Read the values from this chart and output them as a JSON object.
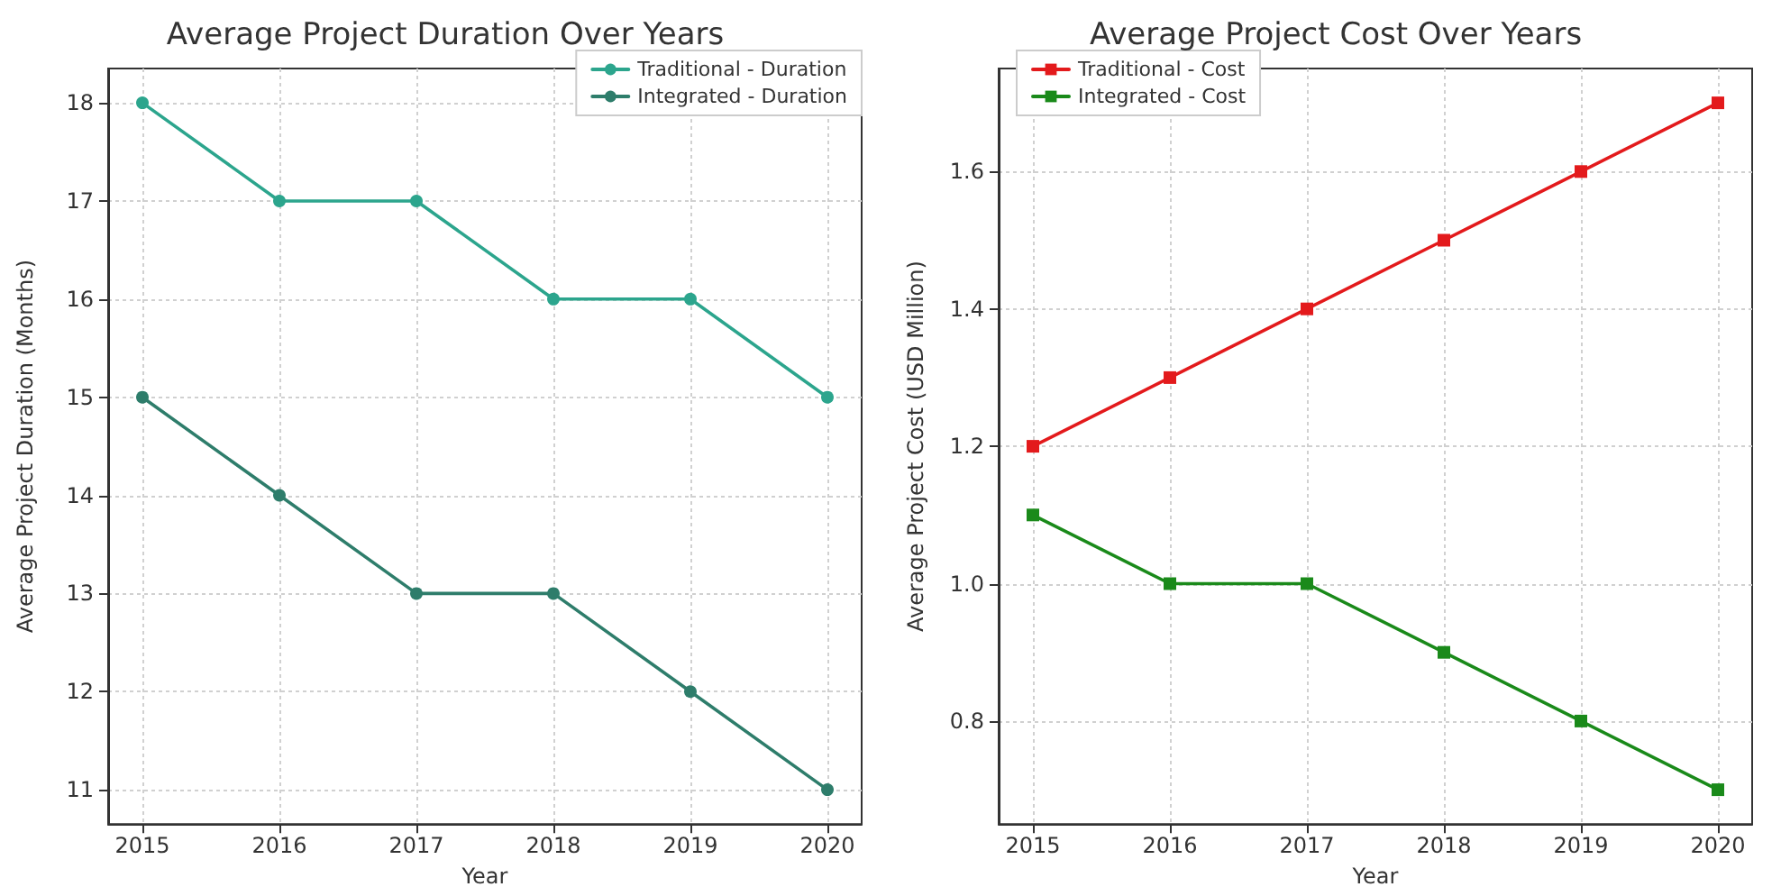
{
  "chart_data": [
    {
      "type": "line",
      "title": "Average Project Duration Over Years",
      "xlabel": "Year",
      "ylabel": "Average Project Duration (Months)",
      "x": [
        2015,
        2016,
        2017,
        2018,
        2019,
        2020
      ],
      "series": [
        {
          "name": "Traditional - Duration",
          "color": "#2ca58d",
          "values": [
            18,
            17,
            17,
            16,
            16,
            15
          ]
        },
        {
          "name": "Integrated - Duration",
          "color": "#2e7d6b",
          "values": [
            15,
            14,
            13,
            13,
            12,
            11
          ]
        }
      ],
      "xlim": [
        2014.75,
        2020.25
      ],
      "xticks": [
        2015,
        2016,
        2017,
        2018,
        2019,
        2020
      ],
      "ylim": [
        10.65,
        18.35
      ],
      "yticks": [
        11,
        12,
        13,
        14,
        15,
        16,
        17,
        18
      ],
      "grid": true,
      "legend": "top right",
      "marker": "circle",
      "line_style": "solid"
    },
    {
      "type": "line",
      "title": "Average Project Cost Over Years",
      "xlabel": "Year",
      "ylabel": "Average Project Cost (USD Million)",
      "x": [
        2015,
        2016,
        2017,
        2018,
        2019,
        2020
      ],
      "series": [
        {
          "name": "Traditional - Cost",
          "color": "#e31a1c",
          "values": [
            1.2,
            1.3,
            1.4,
            1.5,
            1.6,
            1.7
          ]
        },
        {
          "name": "Integrated - Cost",
          "color": "#1a8a1a",
          "values": [
            1.1,
            1.0,
            1.0,
            0.9,
            0.8,
            0.7
          ]
        }
      ],
      "xlim": [
        2014.75,
        2020.25
      ],
      "xticks": [
        2015,
        2016,
        2017,
        2018,
        2019,
        2020
      ],
      "ylim": [
        0.65,
        1.75
      ],
      "yticks": [
        0.8,
        {
          "value": 1,
          "label": "1.0"
        },
        1.2,
        1.4,
        1.6
      ],
      "grid": true,
      "legend": "top left",
      "marker": "square",
      "line_style": "solid"
    }
  ]
}
